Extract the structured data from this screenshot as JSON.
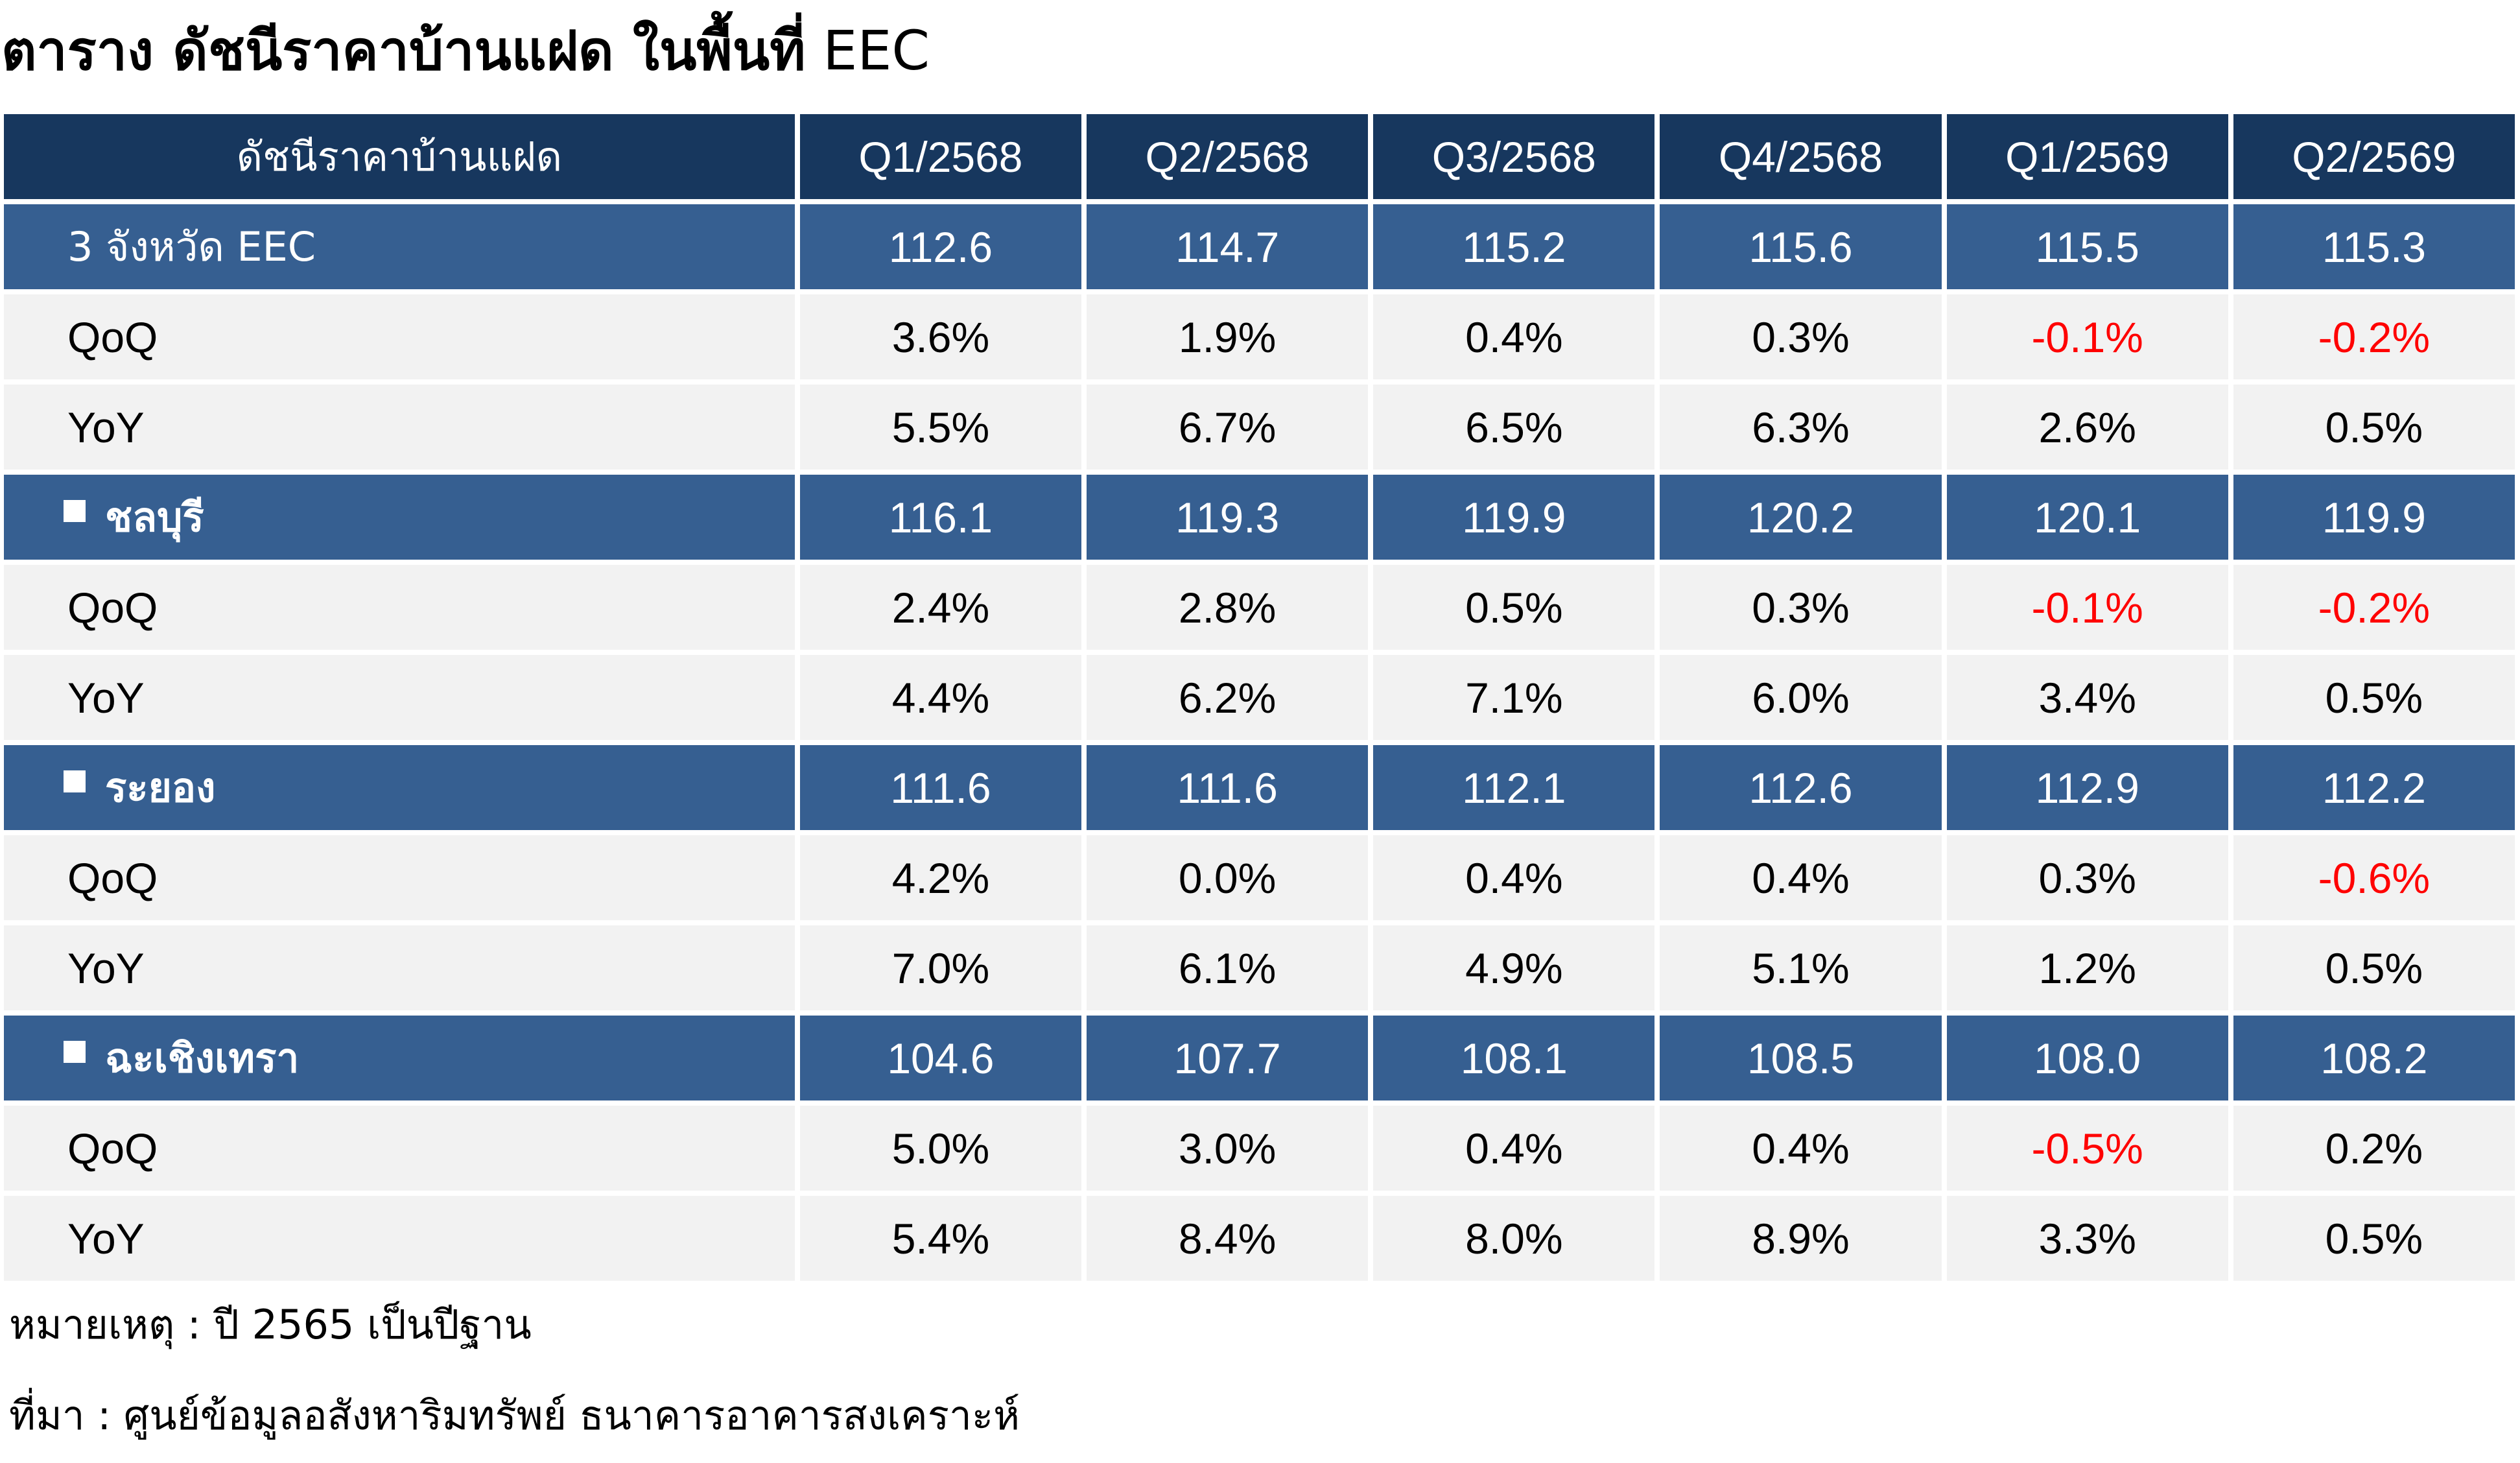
{
  "title": {
    "main": "ตาราง ดัชนีราคาบ้านแฝด ในพื้นที่",
    "suffix": " EEC"
  },
  "table": {
    "corner_label": "ดัชนีราคาบ้านแฝด",
    "columns": [
      "Q1/2568",
      "Q2/2568",
      "Q3/2568",
      "Q4/2568",
      "Q1/2569",
      "Q2/2569"
    ],
    "groups": [
      {
        "name": "3 จังหวัด EEC",
        "bullet": false,
        "index": [
          "112.6",
          "114.7",
          "115.2",
          "115.6",
          "115.5",
          "115.3"
        ],
        "qoq_label": "QoQ",
        "qoq": [
          "3.6%",
          "1.9%",
          "0.4%",
          "0.3%",
          "-0.1%",
          "-0.2%"
        ],
        "yoy_label": "YoY",
        "yoy": [
          "5.5%",
          "6.7%",
          "6.5%",
          "6.3%",
          "2.6%",
          "0.5%"
        ]
      },
      {
        "name": "ชลบุรี",
        "bullet": true,
        "index": [
          "116.1",
          "119.3",
          "119.9",
          "120.2",
          "120.1",
          "119.9"
        ],
        "qoq_label": "QoQ",
        "qoq": [
          "2.4%",
          "2.8%",
          "0.5%",
          "0.3%",
          "-0.1%",
          "-0.2%"
        ],
        "yoy_label": "YoY",
        "yoy": [
          "4.4%",
          "6.2%",
          "7.1%",
          "6.0%",
          "3.4%",
          "0.5%"
        ]
      },
      {
        "name": "ระยอง",
        "bullet": true,
        "index": [
          "111.6",
          "111.6",
          "112.1",
          "112.6",
          "112.9",
          "112.2"
        ],
        "qoq_label": "QoQ",
        "qoq": [
          "4.2%",
          "0.0%",
          "0.4%",
          "0.4%",
          "0.3%",
          "-0.6%"
        ],
        "yoy_label": "YoY",
        "yoy": [
          "7.0%",
          "6.1%",
          "4.9%",
          "5.1%",
          "1.2%",
          "0.5%"
        ]
      },
      {
        "name": "ฉะเชิงเทรา",
        "bullet": true,
        "index": [
          "104.6",
          "107.7",
          "108.1",
          "108.5",
          "108.0",
          "108.2"
        ],
        "qoq_label": "QoQ",
        "qoq": [
          "5.0%",
          "3.0%",
          "0.4%",
          "0.4%",
          "-0.5%",
          "0.2%"
        ],
        "yoy_label": "YoY",
        "yoy": [
          "5.4%",
          "8.4%",
          "8.0%",
          "8.9%",
          "3.3%",
          "0.5%"
        ]
      }
    ]
  },
  "notes": {
    "note": "หมายเหตุ : ปี 2565 เป็นปีฐาน",
    "source": "ที่มา : ศูนย์ข้อมูลอสังหาริมทรัพย์ ธนาคารอาคารสงเคราะห์"
  },
  "colors": {
    "header_bg": "#17375e",
    "province_bg": "#365f91",
    "metric_bg": "#f2f2f2",
    "negative": "#ff0000"
  }
}
